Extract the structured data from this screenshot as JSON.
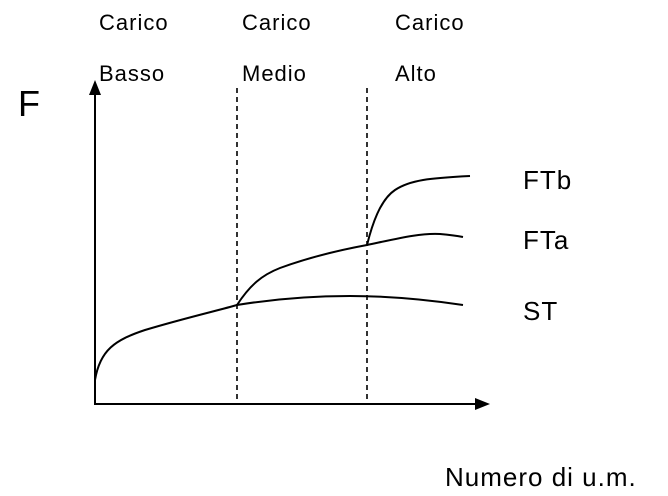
{
  "zones": [
    {
      "line1": "Carico",
      "line2": "Basso"
    },
    {
      "line1": "Carico",
      "line2": "Medio"
    },
    {
      "line1": "Carico",
      "line2": "Alto"
    }
  ],
  "axes": {
    "y_label": "F",
    "x_label": "Numero di u.m."
  },
  "curves": [
    {
      "label": "FTb"
    },
    {
      "label": "FTa"
    },
    {
      "label": "ST"
    }
  ]
}
